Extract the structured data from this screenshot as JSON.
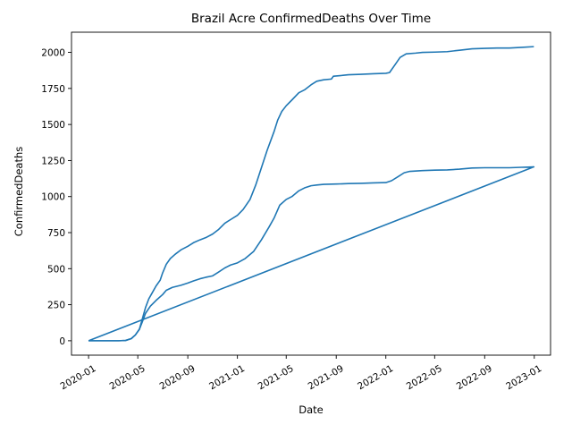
{
  "chart_data": {
    "type": "line",
    "title": "Brazil Acre ConfirmedDeaths Over Time",
    "xlabel": "Date",
    "ylabel": "ConfirmedDeaths",
    "x_ticks": [
      "2020-01",
      "2020-05",
      "2020-09",
      "2021-01",
      "2021-05",
      "2021-09",
      "2022-01",
      "2022-05",
      "2022-09",
      "2023-01"
    ],
    "y_ticks": [
      "0",
      "250",
      "500",
      "750",
      "1000",
      "1250",
      "1500",
      "1750",
      "2000"
    ],
    "xlim": [
      "2019-11-20",
      "2023-02-10"
    ],
    "ylim": [
      -100,
      2140
    ],
    "grid": false,
    "line_color": "#1f77b4",
    "series": [
      {
        "values": [
          [
            "2020-01-01",
            0
          ],
          [
            "2020-02-15",
            0
          ],
          [
            "2020-03-15",
            0
          ],
          [
            "2020-04-01",
            2
          ],
          [
            "2020-04-15",
            15
          ],
          [
            "2020-04-25",
            40
          ],
          [
            "2020-05-05",
            80
          ],
          [
            "2020-05-12",
            150
          ],
          [
            "2020-05-20",
            230
          ],
          [
            "2020-05-28",
            290
          ],
          [
            "2020-06-05",
            330
          ],
          [
            "2020-06-15",
            380
          ],
          [
            "2020-06-25",
            420
          ],
          [
            "2020-07-01",
            470
          ],
          [
            "2020-07-10",
            530
          ],
          [
            "2020-07-20",
            570
          ],
          [
            "2020-08-01",
            600
          ],
          [
            "2020-08-15",
            630
          ],
          [
            "2020-09-01",
            655
          ],
          [
            "2020-09-15",
            680
          ],
          [
            "2020-10-01",
            700
          ],
          [
            "2020-10-15",
            715
          ],
          [
            "2020-11-01",
            740
          ],
          [
            "2020-11-15",
            770
          ],
          [
            "2020-12-01",
            815
          ],
          [
            "2020-12-15",
            840
          ],
          [
            "2021-01-01",
            870
          ],
          [
            "2021-01-15",
            910
          ],
          [
            "2021-02-01",
            980
          ],
          [
            "2021-02-15",
            1080
          ],
          [
            "2021-03-01",
            1200
          ],
          [
            "2021-03-15",
            1320
          ],
          [
            "2021-04-01",
            1450
          ],
          [
            "2021-04-10",
            1530
          ],
          [
            "2021-04-20",
            1590
          ],
          [
            "2021-05-01",
            1630
          ],
          [
            "2021-05-15",
            1670
          ],
          [
            "2021-06-01",
            1720
          ],
          [
            "2021-06-15",
            1740
          ],
          [
            "2021-07-01",
            1775
          ],
          [
            "2021-07-15",
            1800
          ],
          [
            "2021-08-01",
            1810
          ],
          [
            "2021-08-20",
            1815
          ],
          [
            "2021-08-25",
            1835
          ],
          [
            "2021-09-15",
            1840
          ],
          [
            "2021-10-01",
            1845
          ],
          [
            "2021-11-01",
            1848
          ],
          [
            "2021-12-01",
            1852
          ],
          [
            "2022-01-01",
            1855
          ],
          [
            "2022-01-10",
            1860
          ],
          [
            "2022-01-25",
            1920
          ],
          [
            "2022-02-05",
            1965
          ],
          [
            "2022-02-20",
            1990
          ],
          [
            "2022-03-15",
            1995
          ],
          [
            "2022-04-01",
            2000
          ],
          [
            "2022-05-01",
            2002
          ],
          [
            "2022-06-01",
            2005
          ],
          [
            "2022-07-01",
            2015
          ],
          [
            "2022-08-01",
            2025
          ],
          [
            "2022-09-01",
            2028
          ],
          [
            "2022-10-01",
            2030
          ],
          [
            "2022-11-01",
            2030
          ],
          [
            "2022-12-01",
            2035
          ],
          [
            "2022-12-31",
            2040
          ]
        ]
      },
      {
        "values": [
          [
            "2020-01-01",
            0
          ],
          [
            "2020-02-15",
            0
          ],
          [
            "2020-03-15",
            0
          ],
          [
            "2020-04-01",
            2
          ],
          [
            "2020-04-15",
            15
          ],
          [
            "2020-04-25",
            40
          ],
          [
            "2020-05-05",
            80
          ],
          [
            "2020-05-12",
            130
          ],
          [
            "2020-05-20",
            190
          ],
          [
            "2020-06-01",
            240
          ],
          [
            "2020-06-15",
            280
          ],
          [
            "2020-07-01",
            320
          ],
          [
            "2020-07-10",
            350
          ],
          [
            "2020-07-25",
            370
          ],
          [
            "2020-08-15",
            385
          ],
          [
            "2020-09-01",
            400
          ],
          [
            "2020-09-15",
            415
          ],
          [
            "2020-10-01",
            430
          ],
          [
            "2020-10-15",
            440
          ],
          [
            "2020-11-01",
            450
          ],
          [
            "2020-11-15",
            475
          ],
          [
            "2020-12-01",
            505
          ],
          [
            "2020-12-15",
            525
          ],
          [
            "2021-01-01",
            540
          ],
          [
            "2021-01-20",
            570
          ],
          [
            "2021-02-10",
            620
          ],
          [
            "2021-03-01",
            700
          ],
          [
            "2021-03-20",
            790
          ],
          [
            "2021-04-01",
            850
          ],
          [
            "2021-04-15",
            940
          ],
          [
            "2021-05-01",
            980
          ],
          [
            "2021-05-15",
            1000
          ],
          [
            "2021-06-01",
            1040
          ],
          [
            "2021-06-15",
            1060
          ],
          [
            "2021-07-01",
            1075
          ],
          [
            "2021-07-15",
            1080
          ],
          [
            "2021-08-01",
            1085
          ],
          [
            "2021-09-01",
            1087
          ],
          [
            "2021-10-01",
            1090
          ],
          [
            "2021-11-01",
            1092
          ],
          [
            "2021-12-01",
            1095
          ],
          [
            "2022-01-01",
            1097
          ],
          [
            "2022-01-15",
            1110
          ],
          [
            "2022-02-01",
            1140
          ],
          [
            "2022-02-15",
            1165
          ],
          [
            "2022-03-01",
            1175
          ],
          [
            "2022-04-01",
            1180
          ],
          [
            "2022-05-01",
            1183
          ],
          [
            "2022-06-01",
            1185
          ],
          [
            "2022-07-01",
            1190
          ],
          [
            "2022-08-01",
            1198
          ],
          [
            "2022-09-01",
            1200
          ],
          [
            "2022-10-01",
            1200
          ],
          [
            "2022-11-01",
            1200
          ],
          [
            "2022-12-01",
            1203
          ],
          [
            "2022-12-31",
            1206
          ],
          [
            "2020-01-01",
            0
          ]
        ]
      }
    ]
  }
}
